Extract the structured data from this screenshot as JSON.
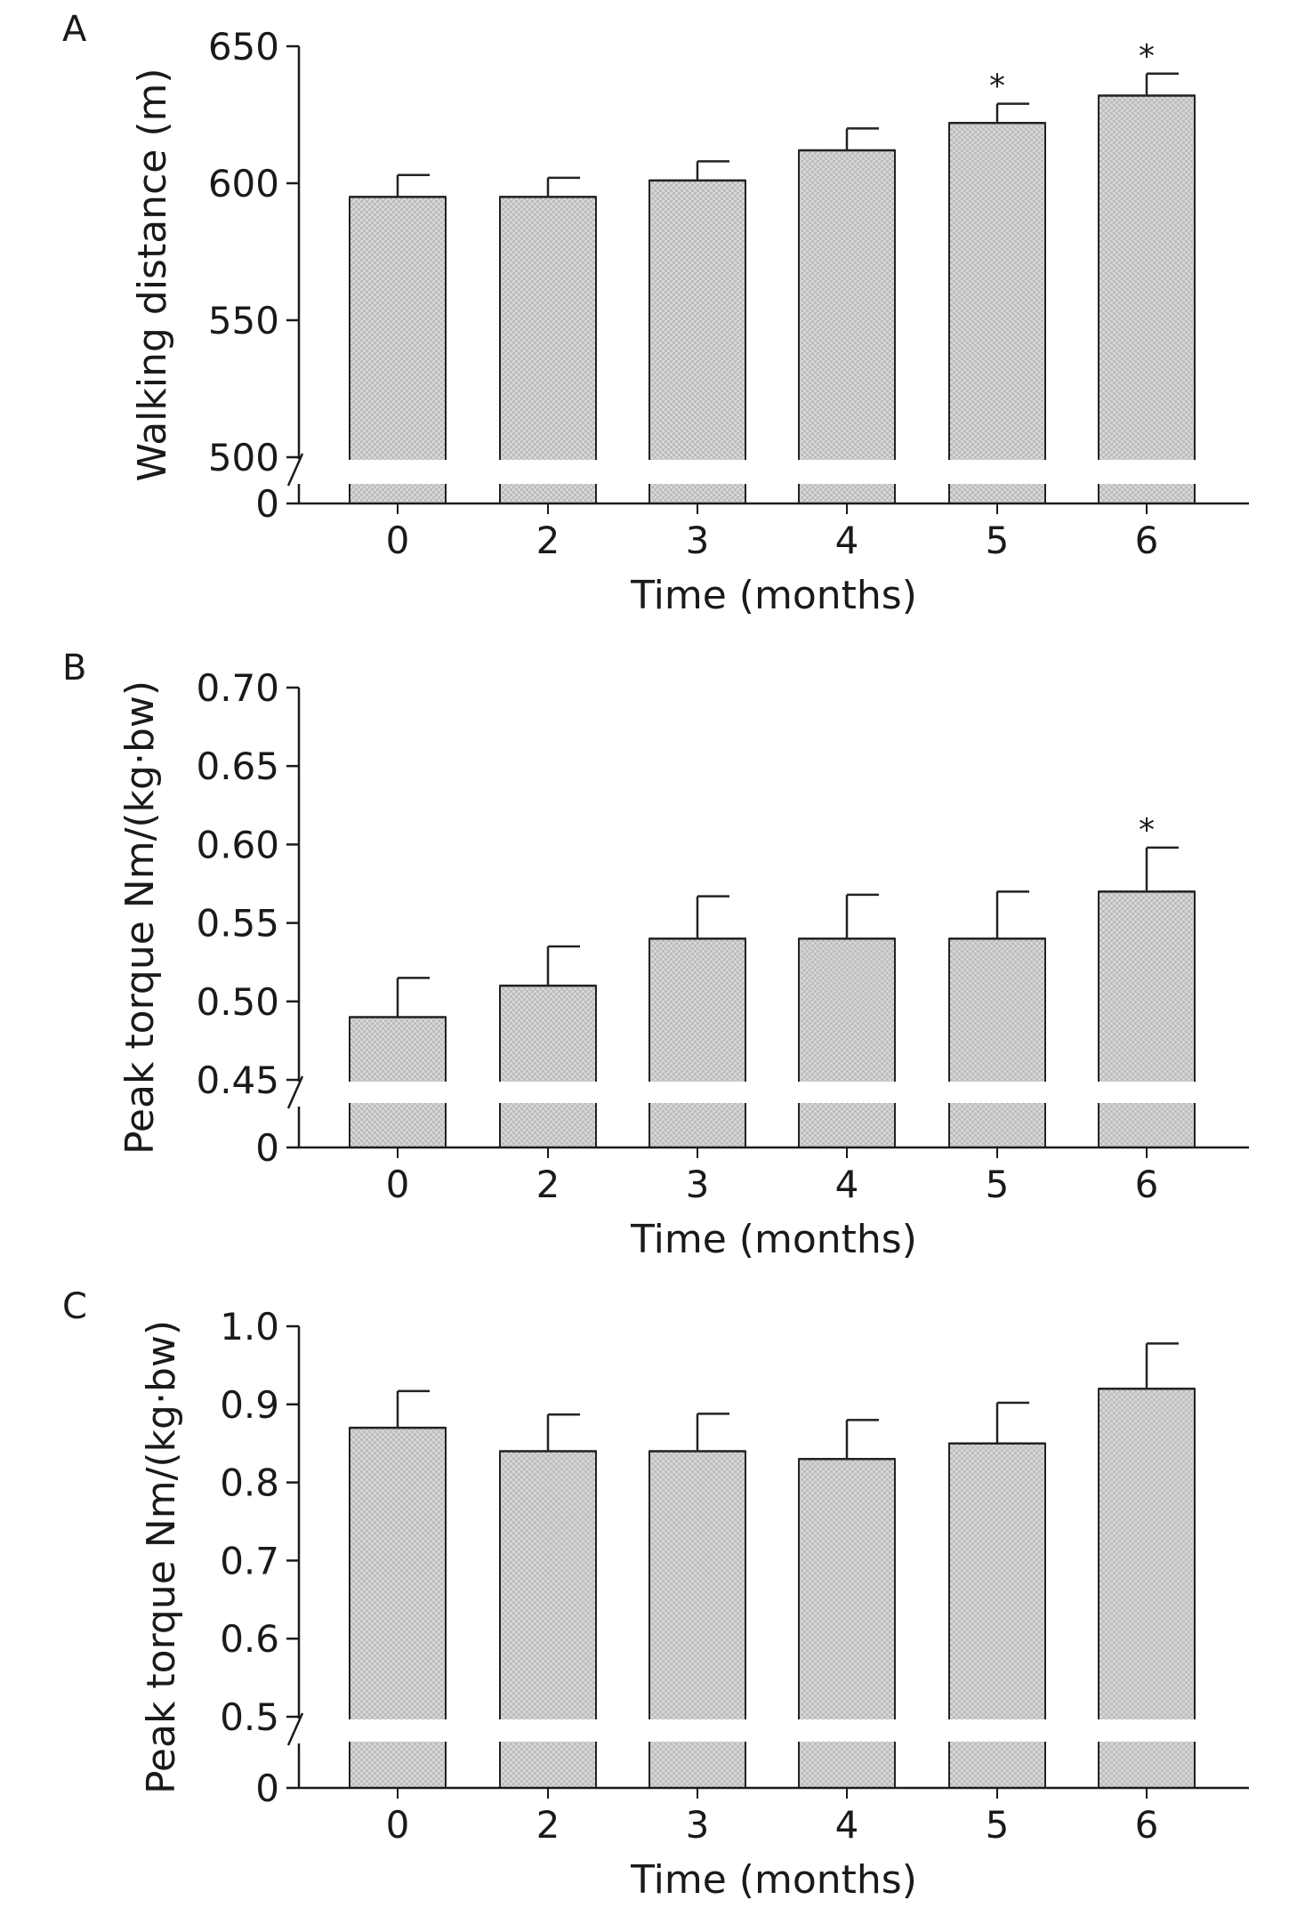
{
  "chart_data": [
    {
      "type": "bar",
      "panel_label": "A",
      "categories": [
        "0",
        "2",
        "3",
        "4",
        "5",
        "6"
      ],
      "values": [
        595,
        595,
        601,
        612,
        622,
        632
      ],
      "errors": [
        8,
        7,
        7,
        8,
        7,
        8
      ],
      "significance": [
        "",
        "",
        "",
        "",
        "*",
        "*"
      ],
      "xlabel": "Time (months)",
      "ylabel": "Walking distance (m)",
      "ylim": [
        500,
        650
      ],
      "yticks": [
        "500",
        "550",
        "600",
        "650"
      ],
      "axis_break": true,
      "break_base_label": "0"
    },
    {
      "type": "bar",
      "panel_label": "B",
      "categories": [
        "0",
        "2",
        "3",
        "4",
        "5",
        "6"
      ],
      "values": [
        0.49,
        0.51,
        0.54,
        0.54,
        0.54,
        0.57
      ],
      "errors": [
        0.025,
        0.025,
        0.027,
        0.028,
        0.03,
        0.028
      ],
      "significance": [
        "",
        "",
        "",
        "",
        "",
        "*"
      ],
      "xlabel": "Time (months)",
      "ylabel": "Peak torque Nm/(kg·bw)",
      "ylim": [
        0.45,
        0.7
      ],
      "yticks": [
        "0.45",
        "0.50",
        "0.55",
        "0.60",
        "0.65",
        "0.70"
      ],
      "axis_break": true,
      "break_base_label": "0"
    },
    {
      "type": "bar",
      "panel_label": "C",
      "categories": [
        "0",
        "2",
        "3",
        "4",
        "5",
        "6"
      ],
      "values": [
        0.87,
        0.84,
        0.84,
        0.83,
        0.85,
        0.92
      ],
      "errors": [
        0.047,
        0.047,
        0.048,
        0.05,
        0.052,
        0.058
      ],
      "significance": [
        "",
        "",
        "",
        "",
        "",
        ""
      ],
      "xlabel": "Time (months)",
      "ylabel": "Peak torque Nm/(kg·bw)",
      "ylim": [
        0.5,
        1.0
      ],
      "yticks": [
        "0.5",
        "0.6",
        "0.7",
        "0.8",
        "0.9",
        "1.0"
      ],
      "axis_break": true,
      "break_base_label": "0"
    }
  ],
  "colors": {
    "bar_fill": "#d3d3d3",
    "bar_checker": "#bdbdbd",
    "axis": "#1a1a1a"
  }
}
